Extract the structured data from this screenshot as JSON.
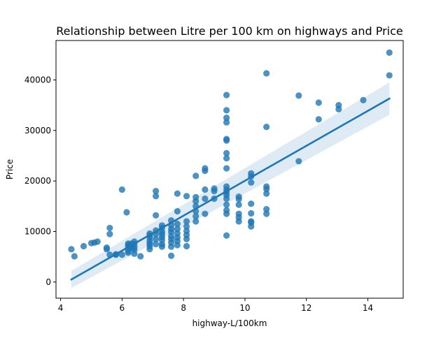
{
  "chart_data": {
    "type": "scatter",
    "title": "Relationship between Litre per 100 km on highways and Price",
    "xlabel": "highway-L/100km",
    "ylabel": "Price",
    "xlim": [
      3.85,
      15.15
    ],
    "ylim": [
      -3200,
      47800
    ],
    "xticks": [
      4,
      6,
      8,
      10,
      12,
      14
    ],
    "yticks": [
      0,
      10000,
      20000,
      30000,
      40000
    ],
    "grid": false,
    "legend": false,
    "colors": {
      "points": "#1f77b4",
      "line": "#1f77b4",
      "band": "#1f77b4"
    },
    "points": [
      [
        4.35,
        6500
      ],
      [
        4.45,
        5100
      ],
      [
        4.75,
        7100
      ],
      [
        5.0,
        7700
      ],
      [
        5.1,
        7800
      ],
      [
        5.2,
        8000
      ],
      [
        5.5,
        6500
      ],
      [
        5.5,
        6800
      ],
      [
        5.6,
        5400
      ],
      [
        5.6,
        9500
      ],
      [
        5.6,
        10700
      ],
      [
        5.8,
        5500
      ],
      [
        5.8,
        5400
      ],
      [
        6.0,
        18300
      ],
      [
        6.0,
        5400
      ],
      [
        6.15,
        13800
      ],
      [
        6.2,
        5800
      ],
      [
        6.2,
        6200
      ],
      [
        6.2,
        6900
      ],
      [
        6.2,
        7300
      ],
      [
        6.2,
        7600
      ],
      [
        6.3,
        6700
      ],
      [
        6.3,
        7100
      ],
      [
        6.3,
        7600
      ],
      [
        6.4,
        5600
      ],
      [
        6.4,
        6400
      ],
      [
        6.4,
        6900
      ],
      [
        6.4,
        7500
      ],
      [
        6.4,
        8000
      ],
      [
        6.6,
        5100
      ],
      [
        6.9,
        6500
      ],
      [
        6.9,
        7100
      ],
      [
        6.9,
        7600
      ],
      [
        6.9,
        8100
      ],
      [
        6.9,
        8800
      ],
      [
        6.9,
        9200
      ],
      [
        6.9,
        9600
      ],
      [
        7.1,
        7500
      ],
      [
        7.1,
        8500
      ],
      [
        7.1,
        9500
      ],
      [
        7.1,
        10200
      ],
      [
        7.1,
        13200
      ],
      [
        7.1,
        17000
      ],
      [
        7.1,
        18000
      ],
      [
        7.3,
        7000
      ],
      [
        7.3,
        7500
      ],
      [
        7.3,
        8300
      ],
      [
        7.3,
        8900
      ],
      [
        7.3,
        9500
      ],
      [
        7.3,
        10000
      ],
      [
        7.3,
        10700
      ],
      [
        7.3,
        11200
      ],
      [
        7.6,
        5200
      ],
      [
        7.6,
        7000
      ],
      [
        7.6,
        7800
      ],
      [
        7.6,
        8500
      ],
      [
        7.6,
        9100
      ],
      [
        7.6,
        9900
      ],
      [
        7.6,
        10500
      ],
      [
        7.6,
        11300
      ],
      [
        7.6,
        12200
      ],
      [
        7.8,
        7300
      ],
      [
        7.8,
        8100
      ],
      [
        7.8,
        8800
      ],
      [
        7.8,
        9600
      ],
      [
        7.8,
        10500
      ],
      [
        7.8,
        11500
      ],
      [
        7.8,
        14000
      ],
      [
        7.8,
        17500
      ],
      [
        8.1,
        7100
      ],
      [
        8.1,
        8500
      ],
      [
        8.1,
        9300
      ],
      [
        8.1,
        10100
      ],
      [
        8.1,
        11000
      ],
      [
        8.1,
        12000
      ],
      [
        8.1,
        17000
      ],
      [
        8.4,
        12000
      ],
      [
        8.4,
        13000
      ],
      [
        8.4,
        14000
      ],
      [
        8.4,
        15000
      ],
      [
        8.4,
        16000
      ],
      [
        8.4,
        16800
      ],
      [
        8.4,
        21000
      ],
      [
        8.7,
        13500
      ],
      [
        8.7,
        16500
      ],
      [
        8.7,
        18300
      ],
      [
        8.7,
        22000
      ],
      [
        8.7,
        22500
      ],
      [
        9.0,
        16500
      ],
      [
        9.0,
        18000
      ],
      [
        9.0,
        18500
      ],
      [
        9.4,
        9200
      ],
      [
        9.4,
        13500
      ],
      [
        9.4,
        14200
      ],
      [
        9.4,
        15300
      ],
      [
        9.4,
        16500
      ],
      [
        9.4,
        17200
      ],
      [
        9.4,
        17800
      ],
      [
        9.4,
        18300
      ],
      [
        9.4,
        18900
      ],
      [
        9.4,
        22500
      ],
      [
        9.4,
        24500
      ],
      [
        9.4,
        25500
      ],
      [
        9.4,
        28000
      ],
      [
        9.4,
        28300
      ],
      [
        9.4,
        31600
      ],
      [
        9.4,
        32500
      ],
      [
        9.4,
        34000
      ],
      [
        9.4,
        37000
      ],
      [
        9.8,
        12000
      ],
      [
        9.8,
        12800
      ],
      [
        9.8,
        13500
      ],
      [
        9.8,
        15300
      ],
      [
        9.8,
        16400
      ],
      [
        9.8,
        16900
      ],
      [
        10.2,
        11000
      ],
      [
        10.2,
        11800
      ],
      [
        10.2,
        12000
      ],
      [
        10.2,
        13600
      ],
      [
        10.2,
        15500
      ],
      [
        10.2,
        19700
      ],
      [
        10.2,
        20900
      ],
      [
        10.2,
        21500
      ],
      [
        10.7,
        13500
      ],
      [
        10.7,
        14400
      ],
      [
        10.7,
        17500
      ],
      [
        10.7,
        18400
      ],
      [
        10.7,
        18900
      ],
      [
        10.7,
        30700
      ],
      [
        10.7,
        41300
      ],
      [
        11.75,
        23900
      ],
      [
        11.75,
        36900
      ],
      [
        12.4,
        32200
      ],
      [
        12.4,
        35500
      ],
      [
        13.05,
        34200
      ],
      [
        13.05,
        35000
      ],
      [
        13.85,
        36000
      ],
      [
        14.7,
        40900
      ],
      [
        14.7,
        45400
      ]
    ],
    "regression": {
      "x": [
        4.35,
        14.7
      ],
      "y": [
        500,
        36300
      ],
      "ci_lower": [
        -1200,
        33100
      ],
      "ci_upper": [
        2200,
        39500
      ]
    }
  }
}
